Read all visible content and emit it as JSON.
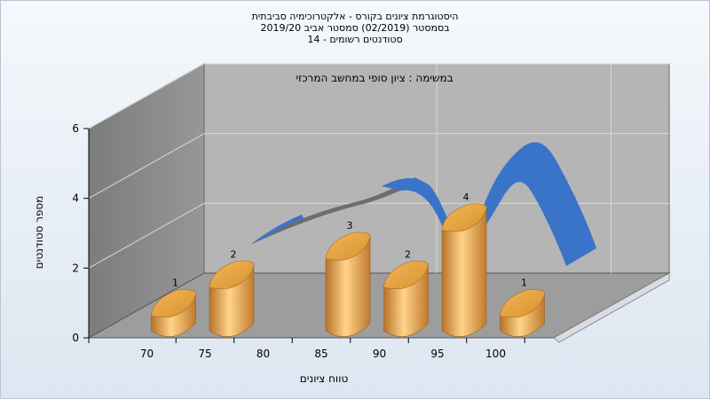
{
  "chart_data": {
    "type": "bar",
    "title_lines": [
      "היסטוגרמת ציונים בקורס - אלקטרוכימיה סביבתית",
      "בסמסטר  (02/2019)  סמסטר אביב 2019/20",
      "סטודנטים רשומים - 14"
    ],
    "subtitle": "במשימה : ציון סופי במחשב המרכזי",
    "xlabel": "טווח ציונים",
    "ylabel": "מספר סטודנטים",
    "x_ticks": [
      "70",
      "75",
      "80",
      "85",
      "90",
      "95",
      "100"
    ],
    "y_ticks": [
      "0",
      "2",
      "4",
      "6"
    ],
    "ylim": [
      0,
      6
    ],
    "bars": [
      {
        "x": 70,
        "value": 1
      },
      {
        "x": 75,
        "value": 2
      },
      {
        "x": 85,
        "value": 3
      },
      {
        "x": 90,
        "value": 2
      },
      {
        "x": 95,
        "value": 4
      },
      {
        "x": 100,
        "value": 1
      }
    ],
    "grid": true,
    "colors": {
      "bar": "#e9a94b",
      "back_wall": "#b4b4b4",
      "side_wall": "#8a8a8a",
      "floor": "#9a9a9a",
      "ribbon_blue": "#3a74c8",
      "ribbon_gray": "#6e6e6e"
    }
  }
}
